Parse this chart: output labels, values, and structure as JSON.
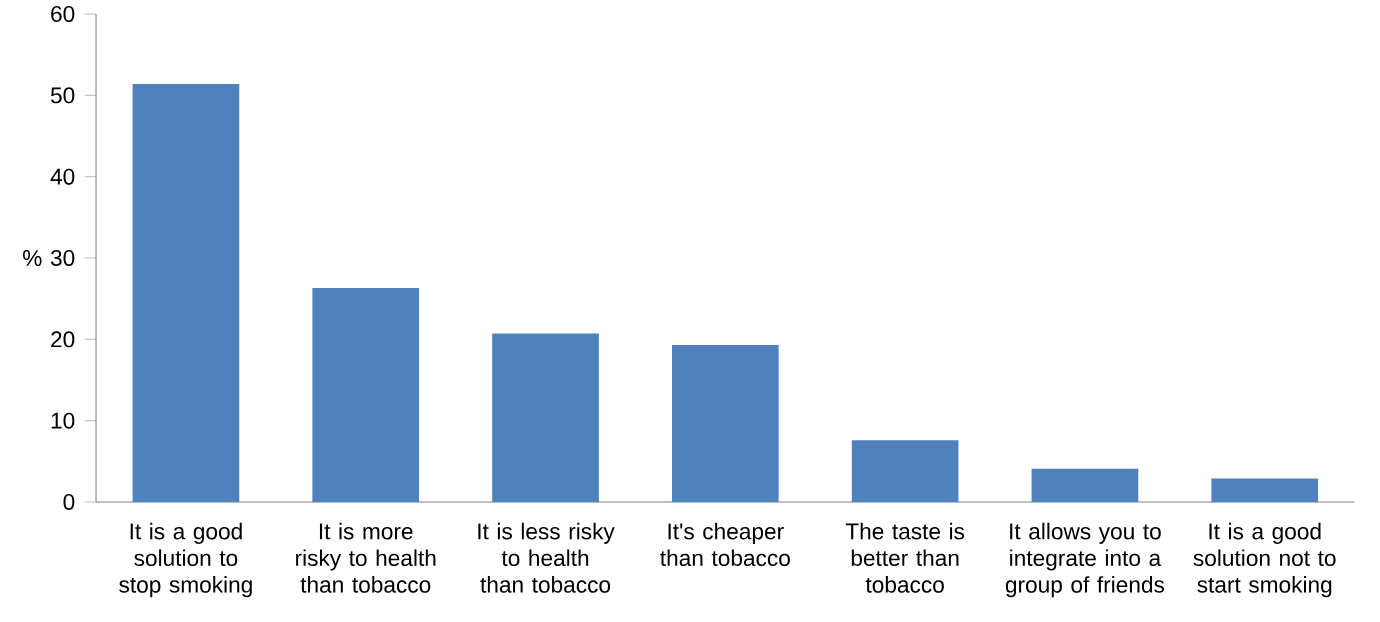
{
  "chart_data": {
    "type": "bar",
    "ylabel": "%",
    "categories": [
      "It is a good solution to stop smoking",
      "It is more risky to health than tobacco",
      "It is less risky to health than tobacco",
      "It's cheaper than tobacco",
      "The taste is better than tobacco",
      "It allows you to integrate into a group of friends",
      "It is a good solution not to start smoking"
    ],
    "values": [
      51.4,
      26.3,
      20.7,
      19.3,
      7.6,
      4.1,
      2.9
    ],
    "color": "#4f81bd",
    "ylim": [
      0,
      60
    ],
    "yticks": [
      0,
      10,
      20,
      30,
      40,
      50,
      60
    ],
    "grid": false
  }
}
